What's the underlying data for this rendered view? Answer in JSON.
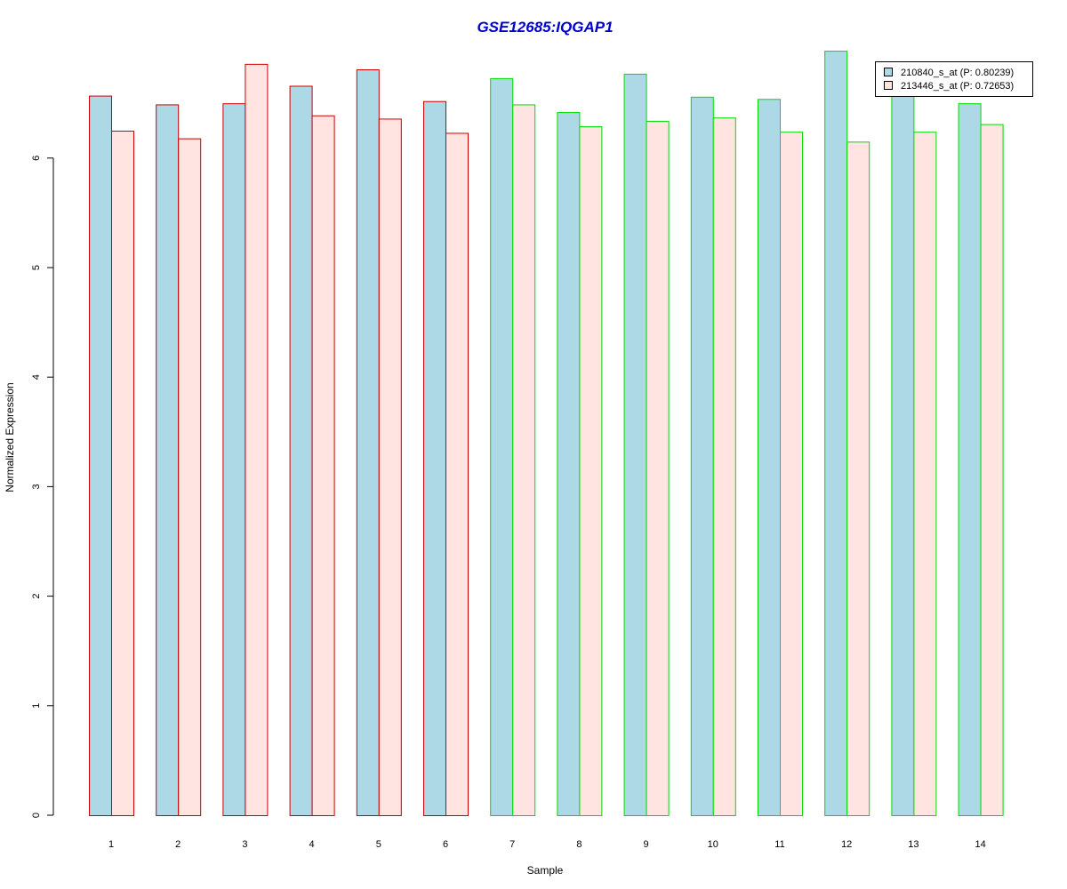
{
  "chart_data": {
    "type": "bar",
    "title": "GSE12685:IQGAP1",
    "xlabel": "Sample",
    "ylabel": "Normalized Expression",
    "categories": [
      "1",
      "2",
      "3",
      "4",
      "5",
      "6",
      "7",
      "8",
      "9",
      "10",
      "11",
      "12",
      "13",
      "14"
    ],
    "ylim": [
      0,
      7.0
    ],
    "yticks": [
      0,
      1,
      2,
      3,
      4,
      5,
      6
    ],
    "grid": false,
    "legend_position": "top-right",
    "series": [
      {
        "name": "210840_s_at (P: 0.80239)",
        "fill": "#add8e6",
        "values": [
          6.57,
          6.49,
          6.5,
          6.66,
          6.81,
          6.52,
          6.73,
          6.42,
          6.77,
          6.56,
          6.54,
          6.98,
          6.62,
          6.5
        ]
      },
      {
        "name": "213446_s_at (P: 0.72653)",
        "fill": "#ffe4e1",
        "values": [
          6.25,
          6.18,
          6.86,
          6.39,
          6.36,
          6.23,
          6.49,
          6.29,
          6.34,
          6.37,
          6.24,
          6.15,
          6.24,
          6.31
        ]
      }
    ],
    "group_border_colors": [
      "#cc0000",
      "#cc0000",
      "#cc0000",
      "#cc0000",
      "#cc0000",
      "#cc0000",
      "#00dd00",
      "#00dd00",
      "#00dd00",
      "#00dd00",
      "#00dd00",
      "#00dd00",
      "#00dd00",
      "#00dd00"
    ],
    "title_color": "#0000cc"
  }
}
